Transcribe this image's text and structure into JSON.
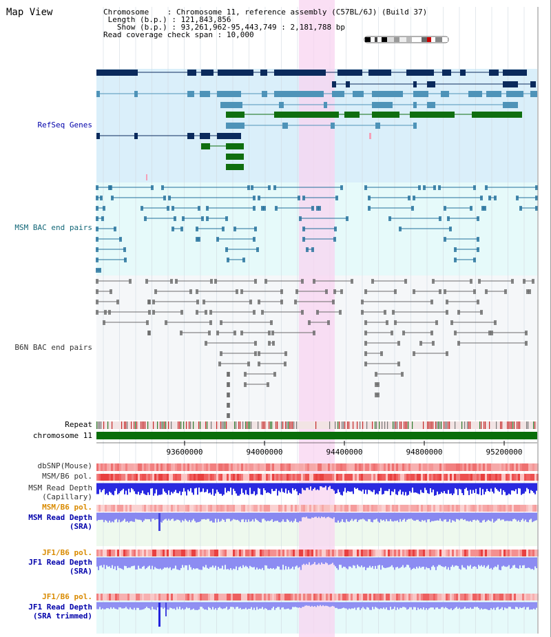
{
  "page": {
    "title": "Map View"
  },
  "info": {
    "chromosome_label": "Chromosome",
    "chromosome_value": "Chromosome 11, reference assembly (C57BL/6J) (Build 37)",
    "length_label": "Length (b.p.)",
    "length_value": "121,843,856",
    "show_label": "Show (b.p.)",
    "show_value": "93,261,962-95,443,749 : 2,181,788 bp",
    "span_label": "Read coverage check span",
    "span_value": "10,000"
  },
  "tracks": {
    "refseq": "RefSeq Genes",
    "msm_bac": "MSM BAC end pairs",
    "b6n_bac": "B6N BAC end pairs",
    "repeat": "Repeat",
    "chromosome": "chromosome 11",
    "dbsnp": "dbSNP(Mouse)",
    "msm_b6_pol": "MSM/B6 pol.",
    "msm_depth_cap_1": "MSM Read Depth",
    "msm_depth_cap_2": "(Capillary)",
    "msm_b6_pol_2": "MSM/B6 pol.",
    "msm_depth_sra_1": "MSM Read Depth",
    "msm_depth_sra_2": "(SRA)",
    "jf1_b6_pol": "JF1/B6 pol.",
    "jf1_depth_sra_1": "JF1 Read Depth",
    "jf1_depth_sra_2": "(SRA)",
    "jf1_b6_pol_2": "JF1/B6 pol.",
    "jf1_depth_trim_1": "JF1 Read Depth",
    "jf1_depth_trim_2": "(SRA trimmed)"
  },
  "axis": {
    "ticks": [
      "93600000",
      "94000000",
      "94400000",
      "94800000",
      "95200000"
    ]
  },
  "colors": {
    "refseq_bg": "#daeffa",
    "msm_bg": "#e6fafa",
    "b6n_bg": "#f5f7f9",
    "highlight": "#f8d4f0",
    "refseq_dark": "#0a2a5c",
    "refseq_mid": "#4e93b8",
    "refseq_green": "#0f6e0f",
    "msm_line": "#206e9a",
    "b6n_line": "#6a6a6a",
    "chromosome_bar": "#0a6e0a",
    "label_black": "#000000",
    "label_teal": "#116677",
    "label_blue": "#0000aa",
    "label_orange": "#d98a00",
    "label_gray": "#333333"
  }
}
